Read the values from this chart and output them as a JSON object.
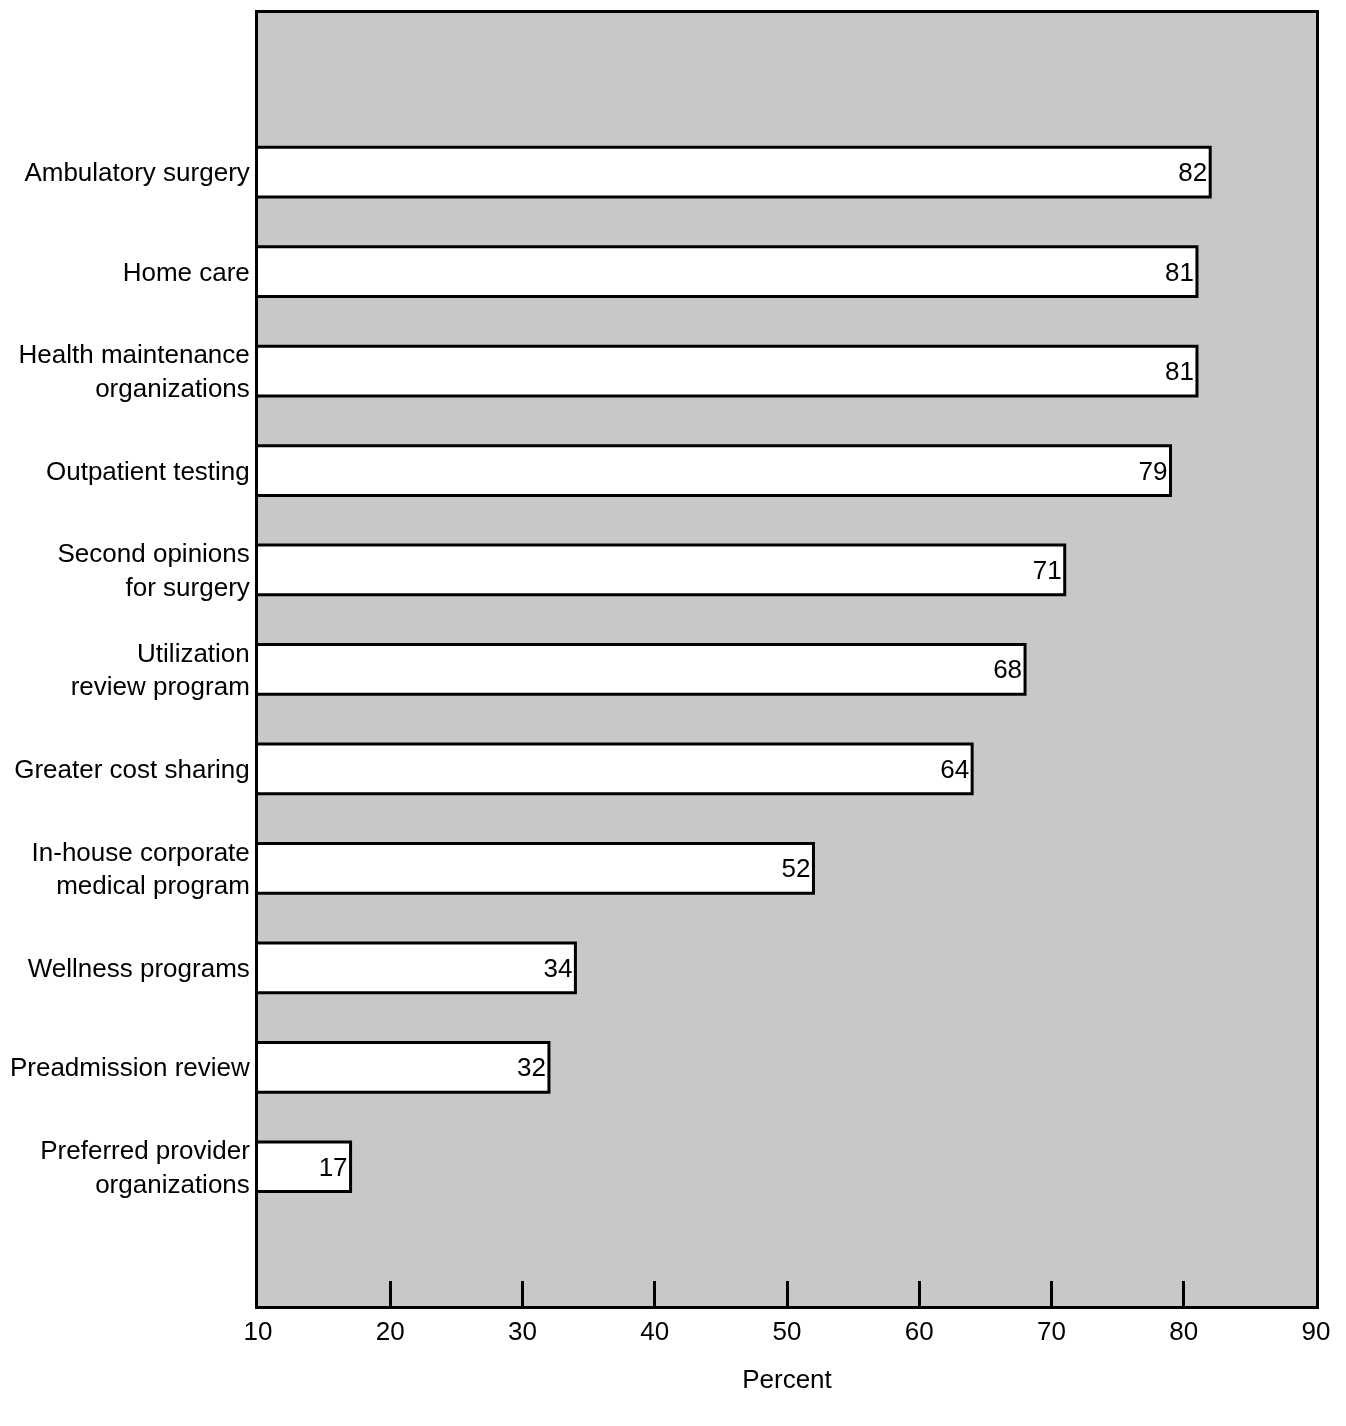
{
  "chart_data": {
    "type": "bar",
    "orientation": "horizontal",
    "categories": [
      "Ambulatory surgery",
      "Home care",
      "Health maintenance\norganizations",
      "Outpatient testing",
      "Second opinions\nfor surgery",
      "Utilization\nreview program",
      "Greater cost sharing",
      "In-house corporate\nmedical program",
      "Wellness programs",
      "Preadmission review",
      "Preferred provider\norganizations"
    ],
    "values": [
      82,
      81,
      81,
      79,
      71,
      68,
      64,
      52,
      34,
      32,
      17
    ],
    "color": "#ffffff",
    "xlim": [
      10,
      90
    ],
    "xticks": [
      10,
      20,
      30,
      40,
      50,
      60,
      70,
      80,
      90
    ],
    "xlabel": "Percent",
    "data_labels": true,
    "grid": false
  }
}
